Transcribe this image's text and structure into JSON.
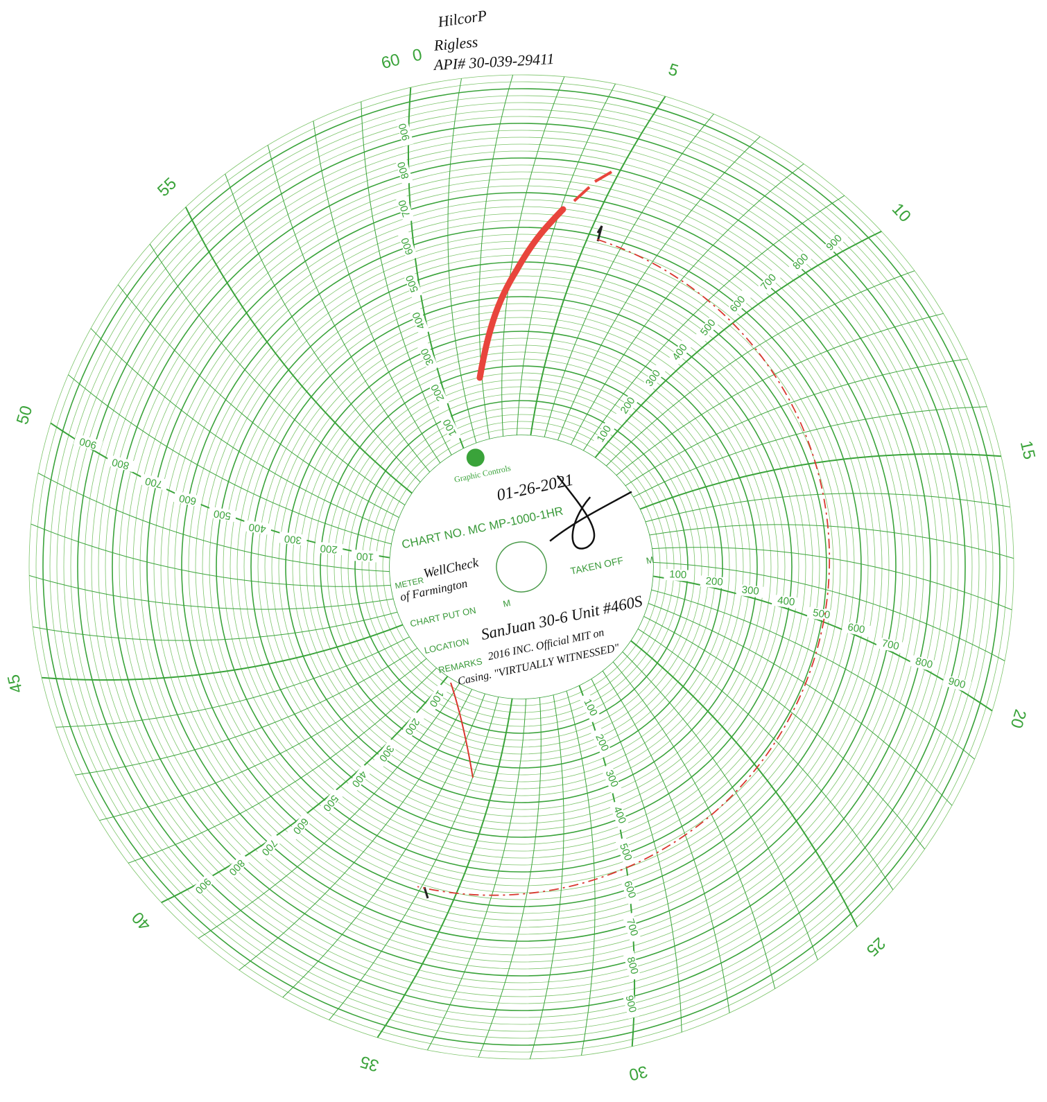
{
  "header_notes": [
    "HilcorP",
    "Rigless",
    "API# 30-039-29411"
  ],
  "start_labels": [
    "60",
    "0"
  ],
  "minute_labels": [
    "5",
    "10",
    "15",
    "20",
    "25",
    "30",
    "35",
    "40",
    "45",
    "50",
    "55"
  ],
  "pressure_labels": [
    "100",
    "200",
    "300",
    "400",
    "500",
    "600",
    "700",
    "800",
    "900"
  ],
  "hub": {
    "brand": "Graphic Controls",
    "date": "01-26-2021",
    "chart_no": "CHART NO. MC MP-1000-1HR",
    "meter_label": "METER",
    "meter": [
      "WellCheck",
      "of Farmington"
    ],
    "taken_off": "TAKEN OFF",
    "put_on": "CHART PUT ON",
    "m": "M",
    "location_label": "LOCATION",
    "location": "SanJuan 30-6 Unit #460S",
    "remarks_label": "REMARKS",
    "remarks": [
      "2016 INC. Official MIT on",
      "Casing. \"VIRTUALLY WITNESSED\""
    ]
  }
}
